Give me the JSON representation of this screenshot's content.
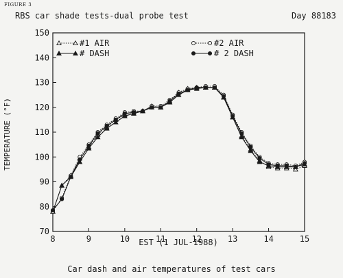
{
  "figure_label": "FIGURE 3",
  "header": {
    "title": "RBS car shade tests-dual probe test",
    "day": "Day 88183"
  },
  "caption": "Car dash and air temperatures of test cars",
  "chart_data": {
    "type": "line",
    "xlabel": "EST (1 JUL-1988)",
    "ylabel": "TEMPERATURE (°F)",
    "xlim": [
      8,
      15
    ],
    "ylim": [
      70,
      150
    ],
    "x_ticks": [
      "8",
      "9",
      "10",
      "11",
      "12",
      "13",
      "14",
      "15"
    ],
    "y_ticks": [
      "70",
      "80",
      "90",
      "100",
      "110",
      "120",
      "130",
      "140",
      "150"
    ],
    "grid": false,
    "legend_position": "top",
    "series": [
      {
        "name": "#1 AIR",
        "marker": "open-triangle",
        "line": "dotted",
        "x": [
          8.0,
          8.25,
          8.5,
          8.75,
          9.0,
          9.25,
          9.5,
          9.75,
          10.0,
          10.25,
          10.5,
          10.75,
          11.0,
          11.25,
          11.5,
          11.75,
          12.0,
          12.25,
          12.5,
          12.75,
          13.0,
          13.25,
          13.5,
          13.75,
          14.0,
          14.25,
          14.5,
          14.75,
          15.0
        ],
        "y": [
          78,
          88.5,
          92.5,
          99.5,
          104,
          109,
          112,
          115,
          117,
          118,
          118.5,
          120.5,
          120,
          122.5,
          126,
          127.5,
          128,
          128,
          128,
          124,
          116,
          108.5,
          103,
          98.5,
          96,
          95.5,
          95.5,
          95,
          96.5
        ]
      },
      {
        "name": "# DASH",
        "marker": "filled-triangle",
        "line": "solid",
        "x": [
          8.0,
          8.25,
          8.5,
          8.75,
          9.0,
          9.25,
          9.5,
          9.75,
          10.0,
          10.25,
          10.5,
          10.75,
          11.0,
          11.25,
          11.5,
          11.75,
          12.0,
          12.25,
          12.5,
          12.75,
          13.0,
          13.25,
          13.5,
          13.75,
          14.0,
          14.25,
          14.5,
          14.75,
          15.0
        ],
        "y": [
          78,
          88.5,
          92,
          98,
          103.5,
          108,
          111.5,
          114,
          116.5,
          117.5,
          118.5,
          120,
          120,
          122,
          125,
          127,
          127.5,
          128,
          128,
          124,
          116,
          108,
          102.5,
          98,
          96.5,
          96,
          96,
          96,
          97
        ]
      },
      {
        "name": "#2 AIR",
        "marker": "open-circle",
        "line": "dotted",
        "x": [
          8.0,
          8.25,
          8.5,
          8.75,
          9.0,
          9.25,
          9.5,
          9.75,
          10.0,
          10.25,
          10.5,
          10.75,
          11.0,
          11.25,
          11.5,
          11.75,
          12.0,
          12.25,
          12.5,
          12.75,
          13.0,
          13.25,
          13.5,
          13.75,
          14.0,
          14.25,
          14.5,
          14.75,
          15.0
        ],
        "y": [
          78,
          83.5,
          92.5,
          100,
          105,
          110,
          113,
          115.5,
          118,
          118.5,
          118.5,
          120.5,
          120.5,
          123,
          126,
          127.5,
          128,
          128.5,
          128.5,
          125,
          117,
          110,
          104.5,
          100,
          97.5,
          97,
          97,
          96.5,
          98
        ]
      },
      {
        "name": "# 2 DASH",
        "marker": "filled-circle",
        "line": "solid",
        "x": [
          8.0,
          8.25,
          8.5,
          8.75,
          9.0,
          9.25,
          9.5,
          9.75,
          10.0,
          10.25,
          10.5,
          10.75,
          11.0,
          11.25,
          11.5,
          11.75,
          12.0,
          12.25,
          12.5,
          12.75,
          13.0,
          13.25,
          13.5,
          13.75,
          14.0,
          14.25,
          14.5,
          14.75,
          15.0
        ],
        "y": [
          78.5,
          83,
          92,
          99,
          104.5,
          109.5,
          112.5,
          115,
          117.5,
          118,
          118.5,
          120,
          120,
          122.5,
          125.5,
          127,
          128,
          128,
          128,
          124.5,
          116.5,
          109.5,
          104,
          99.5,
          97,
          96.5,
          96.5,
          96,
          97.5
        ]
      }
    ]
  }
}
